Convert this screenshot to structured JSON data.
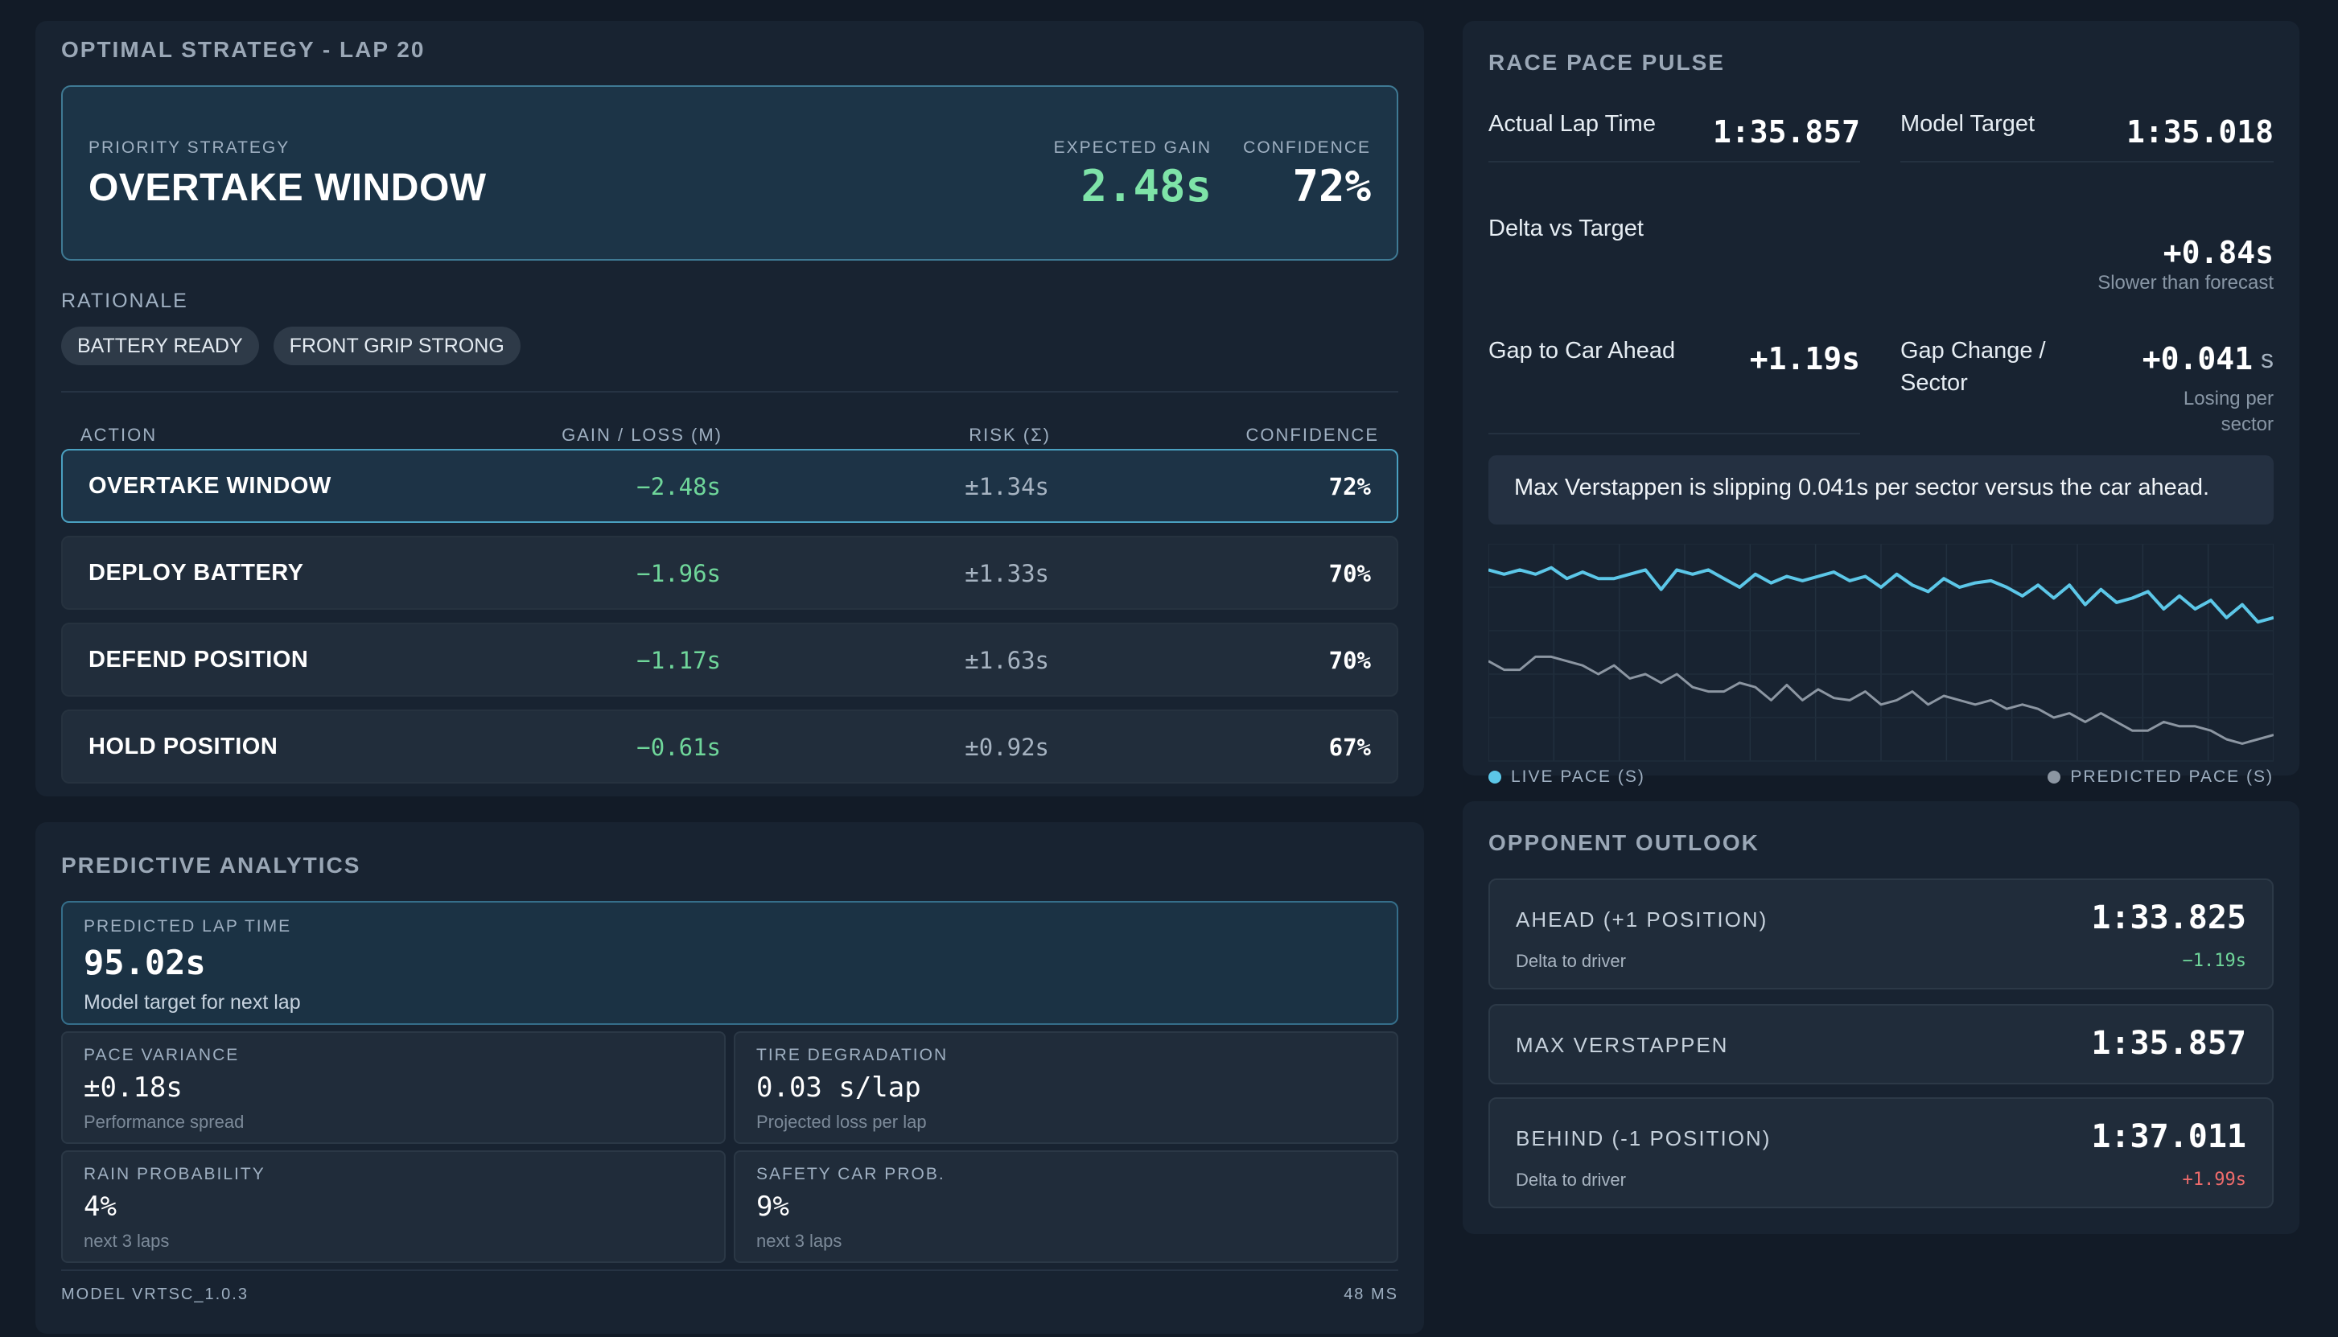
{
  "strategy": {
    "title": "OPTIMAL STRATEGY - LAP 20",
    "priority_label": "PRIORITY STRATEGY",
    "priority_value": "OVERTAKE WINDOW",
    "expected_gain_label": "EXPECTED GAIN",
    "expected_gain_value": "2.48s",
    "confidence_label": "CONFIDENCE",
    "confidence_value": "72%",
    "rationale_label": "RATIONALE",
    "chips": [
      "BATTERY READY",
      "FRONT GRIP STRONG"
    ],
    "table": {
      "headers": [
        "ACTION",
        "GAIN / LOSS (M)",
        "RISK (Σ)",
        "CONFIDENCE"
      ],
      "rows": [
        {
          "action": "OVERTAKE WINDOW",
          "gain": "−2.48s",
          "risk": "±1.34s",
          "confidence": "72%"
        },
        {
          "action": "DEPLOY BATTERY",
          "gain": "−1.96s",
          "risk": "±1.33s",
          "confidence": "70%"
        },
        {
          "action": "DEFEND POSITION",
          "gain": "−1.17s",
          "risk": "±1.63s",
          "confidence": "70%"
        },
        {
          "action": "HOLD POSITION",
          "gain": "−0.61s",
          "risk": "±0.92s",
          "confidence": "67%"
        }
      ]
    }
  },
  "predictive": {
    "title": "PREDICTIVE ANALYTICS",
    "lap_time": {
      "label": "PREDICTED LAP TIME",
      "value": "95.02s",
      "sub": "Model target for next lap"
    },
    "metrics": [
      {
        "label": "PACE VARIANCE",
        "value": "±0.18s",
        "sub": "Performance spread"
      },
      {
        "label": "TIRE DEGRADATION",
        "value": "0.03 s/lap",
        "sub": "Projected loss per lap"
      },
      {
        "label": "RAIN PROBABILITY",
        "value": "4%",
        "sub": "next 3 laps"
      },
      {
        "label": "SAFETY CAR PROB.",
        "value": "9%",
        "sub": "next 3 laps"
      }
    ],
    "model": "MODEL VRTSC_1.0.3",
    "latency": "48 MS"
  },
  "pace": {
    "title": "RACE PACE PULSE",
    "actual_label": "Actual Lap Time",
    "actual_value": "1:35.857",
    "target_label": "Model Target",
    "target_value": "1:35.018",
    "delta_label": "Delta vs Target",
    "delta_value": "+0.84s",
    "delta_sub": "Slower than forecast",
    "gap_label": "Gap to Car Ahead",
    "gap_value": "+1.19s",
    "gapchg_label_1": "Gap Change /",
    "gapchg_label_2": "Sector",
    "gapchg_value": "+0.041",
    "gapchg_unit": "s",
    "gapchg_sub_1": "Losing per",
    "gapchg_sub_2": "sector",
    "insight": "Max Verstappen is slipping 0.041s per sector versus the car ahead.",
    "legend_live": "LIVE PACE (S)",
    "legend_pred": "PREDICTED PACE (S)",
    "live_color": "#5cc7e8",
    "pred_color": "#8c96a2"
  },
  "chart_data": {
    "type": "line",
    "series": [
      {
        "name": "LIVE PACE (S)",
        "values": [
          0.88,
          0.86,
          0.88,
          0.86,
          0.89,
          0.84,
          0.87,
          0.84,
          0.84,
          0.86,
          0.88,
          0.79,
          0.88,
          0.86,
          0.88,
          0.84,
          0.8,
          0.86,
          0.82,
          0.85,
          0.83,
          0.85,
          0.87,
          0.83,
          0.85,
          0.8,
          0.86,
          0.81,
          0.78,
          0.84,
          0.8,
          0.82,
          0.83,
          0.8,
          0.76,
          0.81,
          0.75,
          0.81,
          0.72,
          0.79,
          0.73,
          0.75,
          0.78,
          0.7,
          0.76,
          0.7,
          0.74,
          0.66,
          0.72,
          0.64,
          0.66
        ]
      },
      {
        "name": "PREDICTED PACE (S)",
        "values": [
          0.46,
          0.42,
          0.42,
          0.48,
          0.48,
          0.46,
          0.44,
          0.4,
          0.44,
          0.38,
          0.4,
          0.36,
          0.4,
          0.34,
          0.32,
          0.32,
          0.36,
          0.34,
          0.28,
          0.35,
          0.28,
          0.33,
          0.29,
          0.28,
          0.32,
          0.26,
          0.28,
          0.32,
          0.26,
          0.3,
          0.28,
          0.26,
          0.28,
          0.24,
          0.26,
          0.24,
          0.2,
          0.22,
          0.18,
          0.22,
          0.18,
          0.14,
          0.14,
          0.18,
          0.16,
          0.16,
          0.14,
          0.1,
          0.08,
          0.1,
          0.12
        ]
      }
    ],
    "grid": true
  },
  "opponents": {
    "title": "OPPONENT OUTLOOK",
    "cards": [
      {
        "name": "AHEAD (+1 POSITION)",
        "time": "1:33.825",
        "delta_label": "Delta to driver",
        "delta": "−1.19s",
        "delta_color": "#6fd69a"
      },
      {
        "name": "MAX VERSTAPPEN",
        "time": "1:35.857"
      },
      {
        "name": "BEHIND (-1 POSITION)",
        "time": "1:37.011",
        "delta_label": "Delta to driver",
        "delta": "+1.99s",
        "delta_color": "#ee6b6b"
      }
    ]
  }
}
